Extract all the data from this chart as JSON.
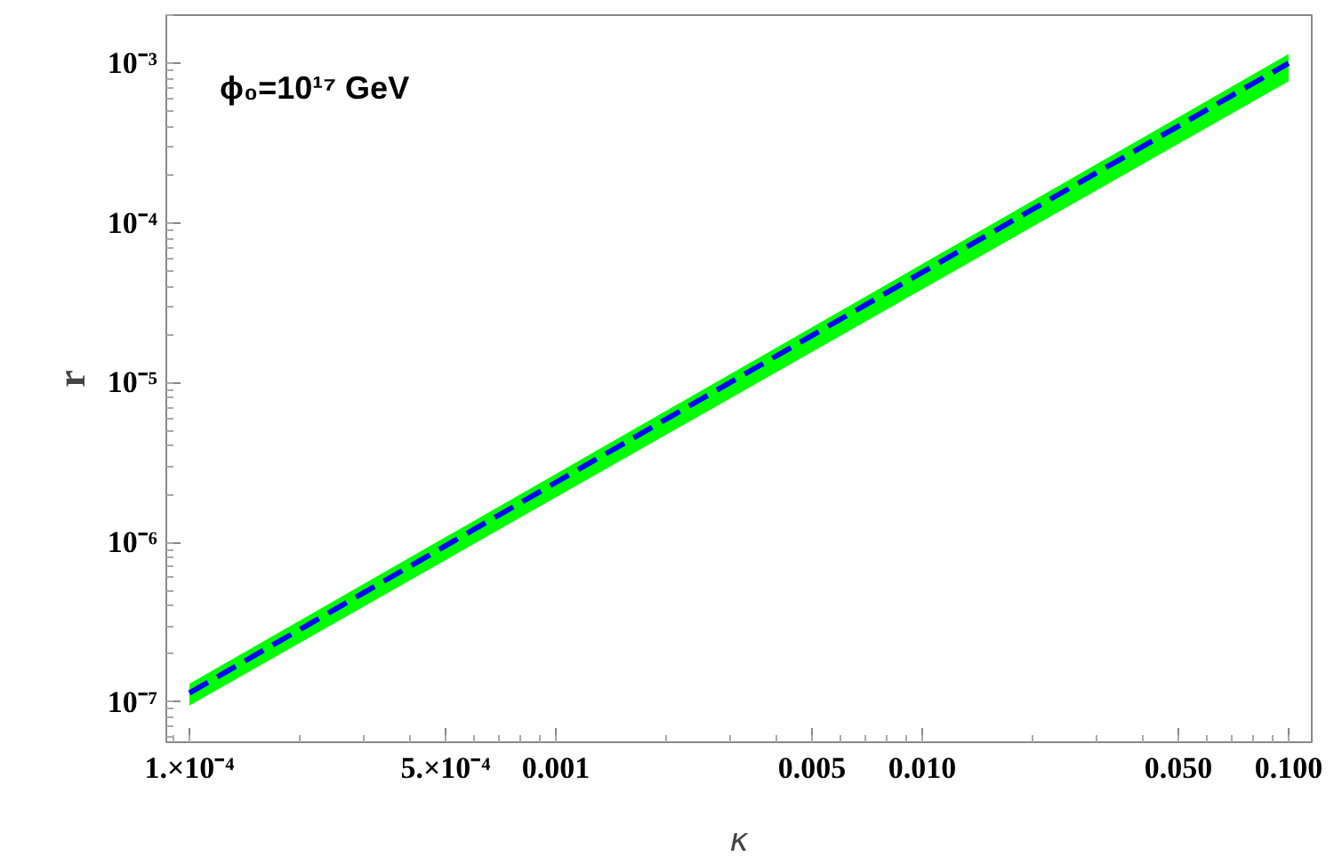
{
  "chart_data": {
    "type": "line",
    "xlabel": "κ",
    "ylabel": "r",
    "log": "xy",
    "grid": false,
    "line_style": "dashed",
    "marker": "none",
    "x": [
      0.0001,
      0.001,
      0.01,
      0.1
    ],
    "series": [
      {
        "color": "#0000ff",
        "values": [
          1.14e-07,
          2.37e-06,
          4.9e-05,
          0.001
        ],
        "lower": [
          9.5e-08,
          1.91e-06,
          3.84e-05,
          0.00077
        ],
        "upper": [
          1.3e-07,
          2.68e-06,
          5.52e-05,
          0.00114
        ]
      }
    ],
    "xlim": [
      8.65e-05,
      0.1157
    ],
    "ylim": [
      5.6e-08,
      0.002
    ],
    "xticks": [
      {
        "value": 0.0001,
        "label": "1.×10⁻⁴"
      },
      {
        "value": 0.0005,
        "label": "5.×10⁻⁴"
      },
      {
        "value": 0.001,
        "label": "0.001"
      },
      {
        "value": 0.005,
        "label": "0.005"
      },
      {
        "value": 0.01,
        "label": "0.010"
      },
      {
        "value": 0.05,
        "label": "0.050"
      },
      {
        "value": 0.1,
        "label": "0.100"
      }
    ],
    "yticks": [
      {
        "value": 1e-07,
        "label": "10⁻⁷"
      },
      {
        "value": 1e-06,
        "label": "10⁻⁶"
      },
      {
        "value": 1e-05,
        "label": "10⁻⁵"
      },
      {
        "value": 0.0001,
        "label": "10⁻⁴"
      },
      {
        "value": 0.001,
        "label": "10⁻³"
      }
    ],
    "annotations": [
      "ϕ₀=10¹⁷ GeV"
    ]
  }
}
